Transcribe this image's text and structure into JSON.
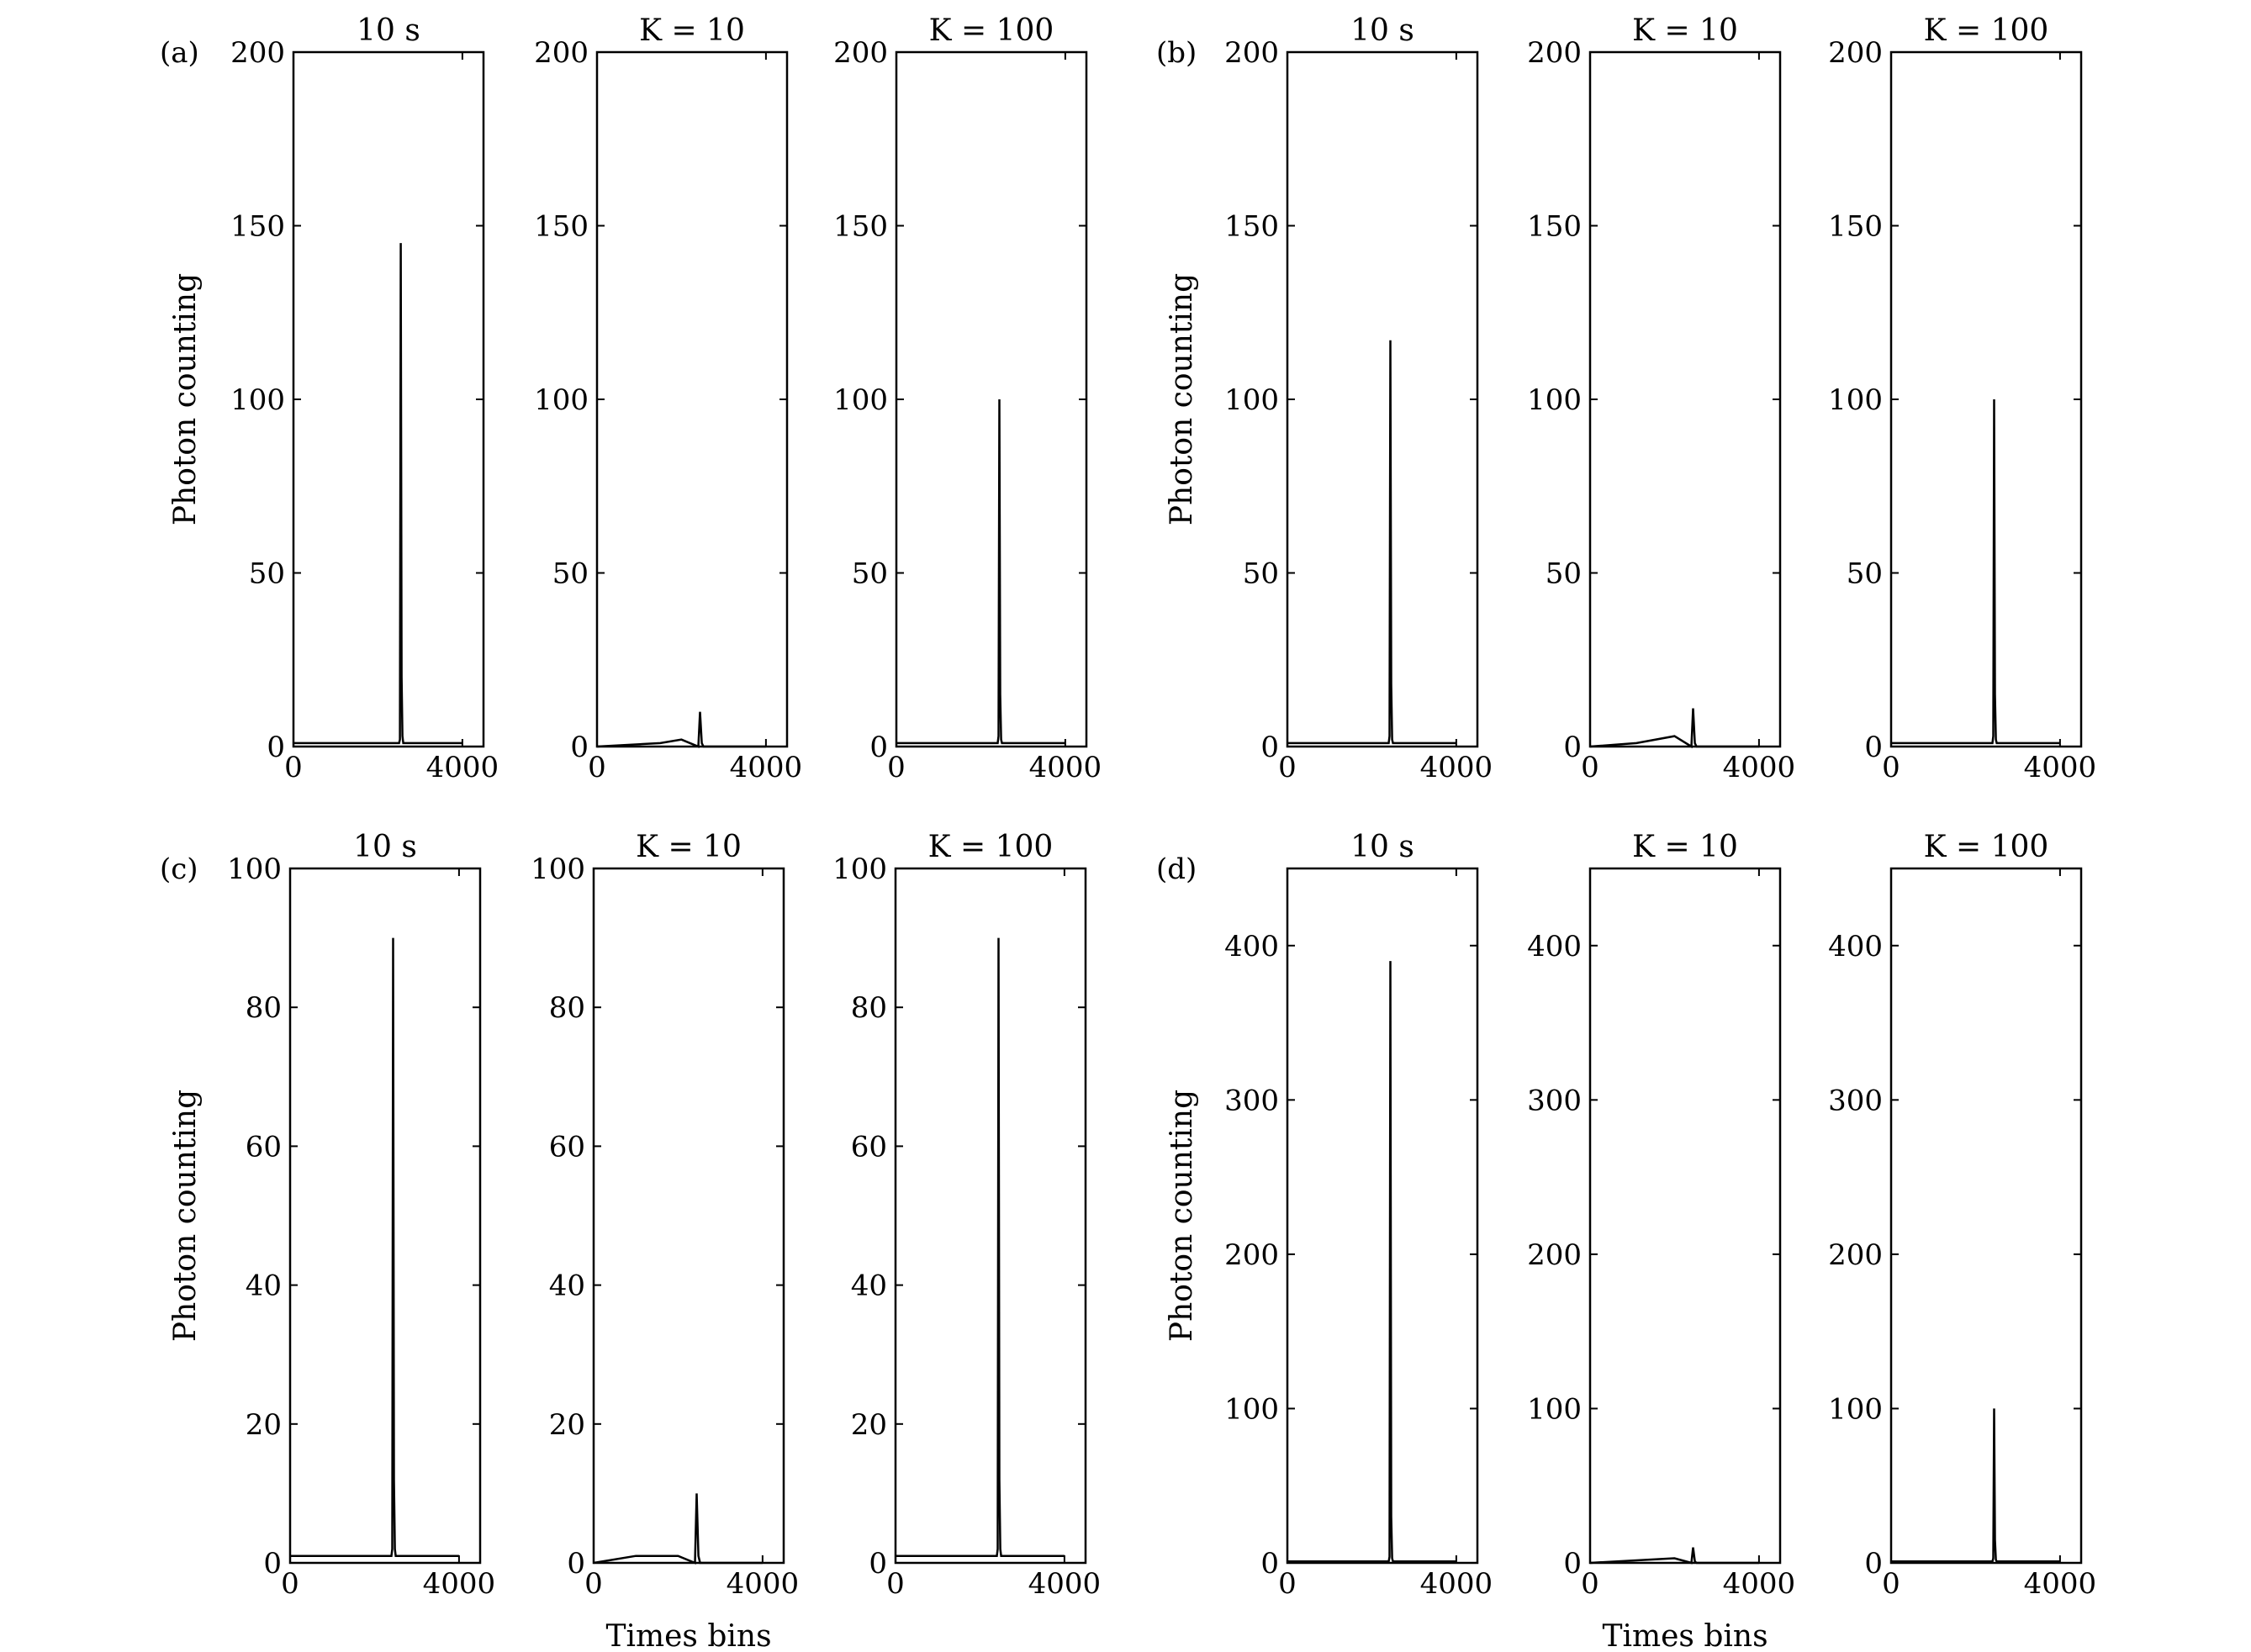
{
  "figure": {
    "y_axis_title": "Photon counting",
    "x_axis_title": "Times bins"
  },
  "chart_data": [
    {
      "panel": "(a)",
      "type": "line",
      "title": "10 s",
      "xlim": [
        0,
        4500
      ],
      "ylim": [
        0,
        200
      ],
      "xticks": [
        0,
        4000
      ],
      "yticks": [
        0,
        50,
        100,
        150,
        200
      ],
      "series": [
        {
          "x": [
            0,
            2500,
            2520,
            2540,
            2560,
            2580,
            2600,
            2620,
            4000
          ],
          "y": [
            1,
            1,
            2,
            145,
            20,
            3,
            1,
            1,
            1
          ]
        }
      ]
    },
    {
      "panel": "(a)",
      "type": "line",
      "title": "K = 10",
      "xlim": [
        0,
        4500
      ],
      "ylim": [
        0,
        200
      ],
      "xticks": [
        0,
        4000
      ],
      "yticks": [
        0,
        50,
        100,
        150,
        200
      ],
      "series": [
        {
          "x": [
            0,
            1500,
            2000,
            2400,
            2440,
            2480,
            2520,
            4000
          ],
          "y": [
            0,
            1,
            2,
            0,
            10,
            1,
            0,
            0
          ]
        }
      ]
    },
    {
      "panel": "(a)",
      "type": "line",
      "title": "K = 100",
      "xlim": [
        0,
        4500
      ],
      "ylim": [
        0,
        200
      ],
      "xticks": [
        0,
        4000
      ],
      "yticks": [
        0,
        50,
        100,
        150,
        200
      ],
      "series": [
        {
          "x": [
            0,
            2400,
            2420,
            2440,
            2460,
            2480,
            2500,
            4000
          ],
          "y": [
            1,
            1,
            3,
            100,
            15,
            2,
            1,
            1
          ]
        }
      ]
    },
    {
      "panel": "(b)",
      "type": "line",
      "title": "10 s",
      "xlim": [
        0,
        4500
      ],
      "ylim": [
        0,
        200
      ],
      "xticks": [
        0,
        4000
      ],
      "yticks": [
        0,
        50,
        100,
        150,
        200
      ],
      "series": [
        {
          "x": [
            0,
            2400,
            2420,
            2440,
            2460,
            2480,
            2500,
            4000
          ],
          "y": [
            1,
            1,
            3,
            117,
            18,
            2,
            1,
            1
          ]
        }
      ]
    },
    {
      "panel": "(b)",
      "type": "line",
      "title": "K = 10",
      "xlim": [
        0,
        4500
      ],
      "ylim": [
        0,
        200
      ],
      "xticks": [
        0,
        4000
      ],
      "yticks": [
        0,
        50,
        100,
        150,
        200
      ],
      "series": [
        {
          "x": [
            0,
            1100,
            2000,
            2400,
            2440,
            2480,
            2520,
            4000
          ],
          "y": [
            0,
            1,
            3,
            0,
            11,
            1,
            0,
            0
          ]
        }
      ]
    },
    {
      "panel": "(b)",
      "type": "line",
      "title": "K = 100",
      "xlim": [
        0,
        4500
      ],
      "ylim": [
        0,
        200
      ],
      "xticks": [
        0,
        4000
      ],
      "yticks": [
        0,
        50,
        100,
        150,
        200
      ],
      "series": [
        {
          "x": [
            0,
            2400,
            2420,
            2440,
            2460,
            2480,
            2500,
            4000
          ],
          "y": [
            1,
            1,
            3,
            100,
            15,
            2,
            1,
            1
          ]
        }
      ]
    },
    {
      "panel": "(c)",
      "type": "line",
      "title": "10 s",
      "xlim": [
        0,
        4500
      ],
      "ylim": [
        0,
        100
      ],
      "xticks": [
        0,
        4000
      ],
      "yticks": [
        0,
        20,
        40,
        60,
        80,
        100
      ],
      "series": [
        {
          "x": [
            0,
            2400,
            2420,
            2440,
            2460,
            2480,
            2500,
            4000
          ],
          "y": [
            1,
            1,
            2,
            90,
            12,
            2,
            1,
            1
          ]
        }
      ]
    },
    {
      "panel": "(c)",
      "type": "line",
      "title": "K = 10",
      "xlim": [
        0,
        4500
      ],
      "ylim": [
        0,
        100
      ],
      "xticks": [
        0,
        4000
      ],
      "yticks": [
        0,
        20,
        40,
        60,
        80,
        100
      ],
      "series": [
        {
          "x": [
            0,
            1000,
            2000,
            2400,
            2440,
            2480,
            2520,
            4000
          ],
          "y": [
            0,
            1,
            1,
            0,
            10,
            1,
            0,
            0
          ]
        }
      ]
    },
    {
      "panel": "(c)",
      "type": "line",
      "title": "K = 100",
      "xlim": [
        0,
        4500
      ],
      "ylim": [
        0,
        100
      ],
      "xticks": [
        0,
        4000
      ],
      "yticks": [
        0,
        20,
        40,
        60,
        80,
        100
      ],
      "series": [
        {
          "x": [
            0,
            2400,
            2420,
            2440,
            2460,
            2480,
            2500,
            4000
          ],
          "y": [
            1,
            1,
            2,
            90,
            12,
            2,
            1,
            1
          ]
        }
      ]
    },
    {
      "panel": "(d)",
      "type": "line",
      "title": "10 s",
      "xlim": [
        0,
        4500
      ],
      "ylim": [
        0,
        450
      ],
      "xticks": [
        0,
        4000
      ],
      "yticks": [
        0,
        100,
        200,
        300,
        400
      ],
      "series": [
        {
          "x": [
            0,
            2400,
            2420,
            2440,
            2460,
            2480,
            2500,
            4000
          ],
          "y": [
            1,
            1,
            4,
            390,
            30,
            3,
            1,
            1
          ]
        }
      ]
    },
    {
      "panel": "(d)",
      "type": "line",
      "title": "K = 10",
      "xlim": [
        0,
        4500
      ],
      "ylim": [
        0,
        450
      ],
      "xticks": [
        0,
        4000
      ],
      "yticks": [
        0,
        100,
        200,
        300,
        400
      ],
      "series": [
        {
          "x": [
            0,
            2000,
            2400,
            2440,
            2480,
            2520,
            4000
          ],
          "y": [
            0,
            3,
            0,
            10,
            1,
            0,
            0
          ]
        }
      ]
    },
    {
      "panel": "(d)",
      "type": "line",
      "title": "K = 100",
      "xlim": [
        0,
        4500
      ],
      "ylim": [
        0,
        450
      ],
      "xticks": [
        0,
        4000
      ],
      "yticks": [
        0,
        100,
        200,
        300,
        400
      ],
      "series": [
        {
          "x": [
            0,
            2400,
            2420,
            2440,
            2460,
            2480,
            2500,
            4000
          ],
          "y": [
            1,
            1,
            3,
            100,
            15,
            2,
            1,
            1
          ]
        }
      ]
    }
  ]
}
